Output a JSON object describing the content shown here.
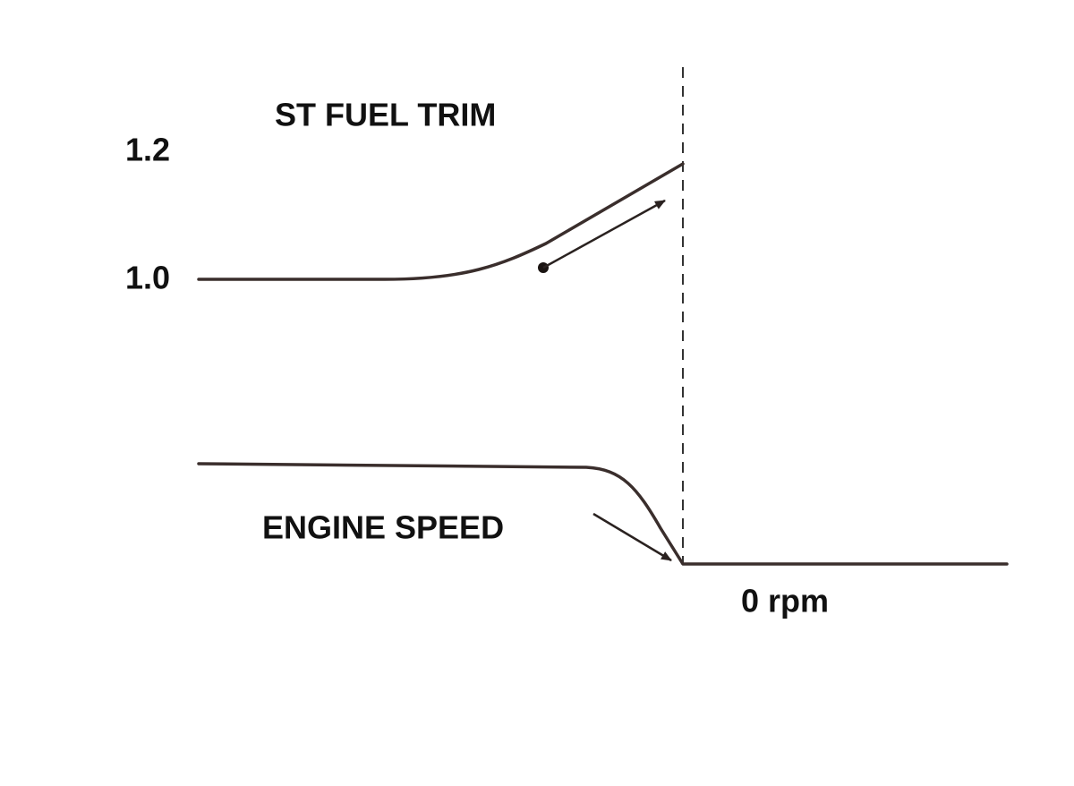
{
  "labels": {
    "fuel_trim_title": "ST FUEL TRIM",
    "fuel_trim_high": "1.2",
    "fuel_trim_base": "1.0",
    "engine_speed_title": "ENGINE SPEED",
    "engine_speed_zero": "0 rpm"
  }
}
